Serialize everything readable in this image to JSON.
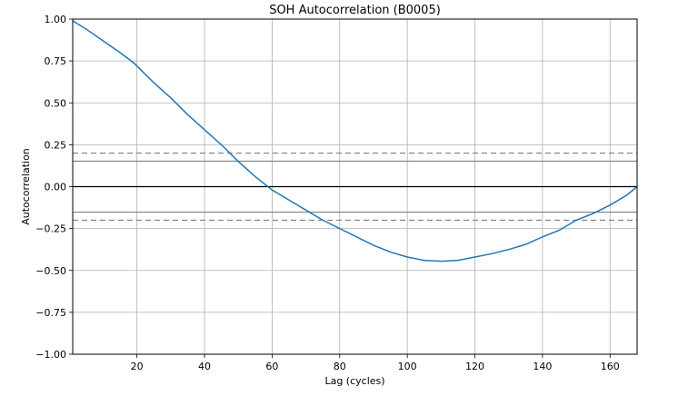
{
  "chart_data": {
    "type": "line",
    "title": "SOH Autocorrelation (B0005)",
    "xlabel": "Lag (cycles)",
    "ylabel": "Autocorrelation",
    "xlim": [
      1,
      168
    ],
    "ylim": [
      -1.0,
      1.0
    ],
    "grid": true,
    "x_ticks": [
      20,
      40,
      60,
      80,
      100,
      120,
      140,
      160
    ],
    "x_tick_labels": [
      "20",
      "40",
      "60",
      "80",
      "100",
      "120",
      "140",
      "160"
    ],
    "y_ticks": [
      -1.0,
      -0.75,
      -0.5,
      -0.25,
      0.0,
      0.25,
      0.5,
      0.75,
      1.0
    ],
    "y_tick_labels": [
      "−1.00",
      "−0.75",
      "−0.50",
      "−0.25",
      "0.00",
      "0.25",
      "0.50",
      "0.75",
      "1.00"
    ],
    "reference_lines": [
      {
        "y": 0.0,
        "style": "solid",
        "color": "#000000"
      },
      {
        "y": 0.152,
        "style": "solid",
        "color": "#808080"
      },
      {
        "y": -0.152,
        "style": "solid",
        "color": "#808080"
      },
      {
        "y": 0.2,
        "style": "dashed",
        "color": "#808080"
      },
      {
        "y": -0.2,
        "style": "dashed",
        "color": "#808080"
      }
    ],
    "series": [
      {
        "color": "#1f77b4",
        "x": [
          1,
          5,
          10,
          15,
          19,
          22,
          25,
          30,
          35,
          40,
          45,
          50,
          55,
          60,
          65,
          70,
          75,
          80,
          85,
          90,
          95,
          100,
          105,
          110,
          115,
          120,
          125,
          130,
          135,
          140,
          145,
          150,
          155,
          160,
          165,
          168
        ],
        "y": [
          0.99,
          0.94,
          0.87,
          0.8,
          0.74,
          0.68,
          0.62,
          0.53,
          0.43,
          0.34,
          0.25,
          0.15,
          0.06,
          -0.02,
          -0.08,
          -0.14,
          -0.2,
          -0.25,
          -0.3,
          -0.35,
          -0.39,
          -0.42,
          -0.44,
          -0.445,
          -0.44,
          -0.42,
          -0.4,
          -0.375,
          -0.345,
          -0.3,
          -0.26,
          -0.2,
          -0.16,
          -0.11,
          -0.05,
          0.0
        ]
      }
    ]
  }
}
